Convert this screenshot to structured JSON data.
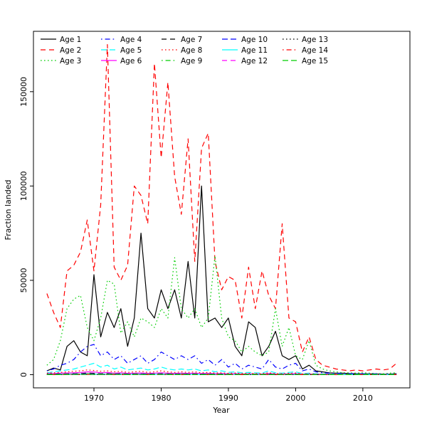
{
  "figure": {
    "background": "#ffffff"
  },
  "chart_data": {
    "type": "line",
    "title": "",
    "xlabel": "Year",
    "ylabel": "Fraction landed",
    "xlim": [
      1961,
      2017
    ],
    "ylim": [
      -7000,
      182000
    ],
    "x_ticks": [
      1970,
      1980,
      1990,
      2000,
      2010
    ],
    "y_ticks": [
      0,
      50000,
      100000,
      150000
    ],
    "grid": false,
    "legend_position": "top-left",
    "legend_columns": 5,
    "legend_rows": 3,
    "x": [
      1963,
      1964,
      1965,
      1966,
      1967,
      1968,
      1969,
      1970,
      1971,
      1972,
      1973,
      1974,
      1975,
      1976,
      1977,
      1978,
      1979,
      1980,
      1981,
      1982,
      1983,
      1984,
      1985,
      1986,
      1987,
      1988,
      1989,
      1990,
      1991,
      1992,
      1993,
      1994,
      1995,
      1996,
      1997,
      1998,
      1999,
      2000,
      2001,
      2002,
      2003,
      2004,
      2005,
      2006,
      2007,
      2008,
      2009,
      2010,
      2011,
      2012,
      2013,
      2014,
      2015
    ],
    "series": [
      {
        "name": "Age 1",
        "color": "#000000",
        "dash": "solid",
        "values": [
          2000,
          3500,
          2500,
          15000,
          18000,
          12000,
          10000,
          53000,
          20000,
          33000,
          25000,
          35000,
          15000,
          30000,
          75000,
          35000,
          30000,
          45000,
          35000,
          45000,
          30000,
          60000,
          30000,
          100000,
          28000,
          30000,
          25000,
          30000,
          15000,
          10000,
          28000,
          25000,
          10000,
          15000,
          23000,
          10000,
          8000,
          10000,
          3000,
          5000,
          2000,
          1500,
          1000,
          800,
          800,
          600,
          500,
          500,
          400,
          400,
          300,
          300,
          500
        ]
      },
      {
        "name": "Age 2",
        "color": "#FF0000",
        "dash": "dashed",
        "values": [
          43000,
          33000,
          25000,
          55000,
          58000,
          65000,
          82000,
          55000,
          90000,
          175000,
          57000,
          50000,
          58000,
          100000,
          95000,
          80000,
          165000,
          115000,
          155000,
          105000,
          85000,
          125000,
          60000,
          120000,
          128000,
          60000,
          45000,
          52000,
          50000,
          30000,
          57000,
          35000,
          55000,
          42000,
          35000,
          80000,
          30000,
          28000,
          12000,
          20000,
          8000,
          5000,
          4000,
          3000,
          2500,
          2000,
          2500,
          2000,
          2500,
          3000,
          2500,
          3000,
          6000
        ]
      },
      {
        "name": "Age 3",
        "color": "#00CD00",
        "dash": "dotted",
        "values": [
          5000,
          8000,
          18000,
          35000,
          40000,
          42000,
          25000,
          18000,
          30000,
          50000,
          48000,
          22000,
          28000,
          20000,
          30000,
          28000,
          25000,
          35000,
          30000,
          62000,
          35000,
          30000,
          35000,
          25000,
          30000,
          63000,
          30000,
          20000,
          18000,
          12000,
          15000,
          12000,
          10000,
          12000,
          35000,
          15000,
          25000,
          10000,
          8000,
          18000,
          5000,
          3000,
          2000,
          1500,
          1000,
          1000,
          800,
          1000,
          800,
          600,
          500,
          800,
          1000
        ]
      },
      {
        "name": "Age 4",
        "color": "#0000FF",
        "dash": "dotdash",
        "values": [
          2000,
          3000,
          5000,
          6000,
          8000,
          12000,
          15000,
          16000,
          10000,
          12000,
          8000,
          10000,
          6000,
          8000,
          10000,
          6000,
          8000,
          12000,
          10000,
          8000,
          10000,
          8000,
          10000,
          6000,
          8000,
          5000,
          8000,
          4000,
          6000,
          3000,
          5000,
          4000,
          3000,
          8000,
          4000,
          3000,
          5000,
          6000,
          2000,
          3000,
          1500,
          1000,
          800,
          700,
          600,
          600,
          500,
          500,
          400,
          400,
          300,
          300,
          400
        ]
      },
      {
        "name": "Age 5",
        "color": "#00FFFF",
        "dash": "longdash",
        "values": [
          1000,
          1500,
          2000,
          2500,
          3000,
          4000,
          5000,
          6000,
          4000,
          5000,
          3000,
          4000,
          2500,
          3000,
          3500,
          2500,
          3000,
          4000,
          3000,
          2500,
          3000,
          2500,
          3000,
          2000,
          2500,
          1500,
          2000,
          1200,
          1500,
          1000,
          1200,
          1000,
          800,
          2000,
          1000,
          800,
          1200,
          1500,
          600,
          800,
          500,
          400,
          300,
          300,
          250,
          250,
          200,
          200,
          200,
          150,
          150,
          150,
          200
        ]
      },
      {
        "name": "Age 6",
        "color": "#FF00FF",
        "dash": "solid",
        "values": [
          500,
          600,
          800,
          900,
          1000,
          1200,
          1500,
          1400,
          1000,
          1200,
          800,
          1000,
          700,
          800,
          900,
          700,
          800,
          1000,
          800,
          700,
          800,
          700,
          800,
          600,
          700,
          500,
          600,
          400,
          500,
          350,
          400,
          350,
          300,
          600,
          350,
          300,
          400,
          500,
          250,
          300,
          200,
          180,
          150,
          140,
          130,
          120,
          110,
          110,
          100,
          100,
          90,
          90,
          100
        ]
      },
      {
        "name": "Age 7",
        "color": "#000000",
        "dash": "dashed",
        "values": [
          250,
          300,
          400,
          450,
          500,
          600,
          800,
          700,
          500,
          600,
          400,
          500,
          350,
          400,
          450,
          350,
          400,
          500,
          400,
          350,
          400,
          350,
          400,
          300,
          350,
          250,
          300,
          200,
          250,
          180,
          200,
          180,
          150,
          300,
          180,
          150,
          200,
          250,
          120,
          150,
          100,
          90,
          80,
          70,
          70,
          60,
          60,
          50,
          50,
          50,
          40,
          40,
          50
        ]
      },
      {
        "name": "Age 8",
        "color": "#FF0000",
        "dash": "dotted",
        "values": [
          800,
          1000,
          1200,
          1500,
          1800,
          2000,
          2500,
          2200,
          1800,
          2000,
          1500,
          1800,
          1200,
          1500,
          1800,
          1200,
          1500,
          2000,
          1500,
          1200,
          1500,
          1200,
          1500,
          1000,
          1200,
          900,
          1000,
          700,
          900,
          600,
          700,
          600,
          500,
          1000,
          600,
          500,
          700,
          900,
          400,
          500,
          300,
          250,
          200,
          200,
          180,
          160,
          150,
          150,
          140,
          130,
          120,
          120,
          150
        ]
      },
      {
        "name": "Age 9",
        "color": "#00CD00",
        "dash": "dotdash",
        "values": [
          200,
          250,
          300,
          350,
          400,
          450,
          500,
          480,
          400,
          450,
          350,
          400,
          300,
          350,
          400,
          300,
          350,
          400,
          350,
          300,
          350,
          300,
          350,
          250,
          300,
          200,
          250,
          180,
          200,
          150,
          180,
          150,
          130,
          250,
          150,
          130,
          180,
          200,
          100,
          130,
          80,
          70,
          60,
          60,
          50,
          50,
          45,
          45,
          40,
          40,
          35,
          35,
          40
        ]
      },
      {
        "name": "Age 10",
        "color": "#0000FF",
        "dash": "longdash",
        "values": [
          150,
          180,
          220,
          260,
          300,
          340,
          380,
          360,
          300,
          340,
          260,
          300,
          220,
          260,
          300,
          220,
          260,
          300,
          260,
          220,
          260,
          220,
          260,
          190,
          220,
          150,
          190,
          130,
          150,
          110,
          130,
          110,
          100,
          190,
          110,
          100,
          130,
          150,
          80,
          100,
          60,
          55,
          50,
          45,
          40,
          40,
          35,
          35,
          30,
          30,
          28,
          28,
          30
        ]
      },
      {
        "name": "Age 11",
        "color": "#00FFFF",
        "dash": "solid",
        "values": [
          100,
          120,
          150,
          170,
          200,
          230,
          260,
          240,
          200,
          230,
          170,
          200,
          150,
          170,
          200,
          150,
          170,
          200,
          170,
          150,
          170,
          150,
          170,
          130,
          150,
          100,
          130,
          90,
          100,
          75,
          90,
          75,
          70,
          130,
          75,
          70,
          90,
          100,
          55,
          70,
          40,
          38,
          35,
          32,
          30,
          28,
          26,
          25,
          24,
          22,
          20,
          20,
          22
        ]
      },
      {
        "name": "Age 12",
        "color": "#FF00FF",
        "dash": "dashed",
        "values": [
          70,
          85,
          100,
          120,
          140,
          160,
          180,
          170,
          140,
          160,
          120,
          140,
          100,
          120,
          140,
          100,
          120,
          140,
          120,
          100,
          120,
          100,
          120,
          90,
          100,
          70,
          90,
          60,
          70,
          50,
          60,
          50,
          48,
          90,
          50,
          48,
          60,
          70,
          38,
          48,
          28,
          26,
          24,
          22,
          20,
          19,
          18,
          17,
          16,
          15,
          14,
          14,
          15
        ]
      },
      {
        "name": "Age 13",
        "color": "#000000",
        "dash": "dotted",
        "values": [
          50,
          60,
          70,
          85,
          100,
          115,
          130,
          120,
          100,
          115,
          85,
          100,
          70,
          85,
          100,
          70,
          85,
          100,
          85,
          70,
          85,
          70,
          85,
          65,
          70,
          50,
          65,
          42,
          50,
          36,
          42,
          36,
          34,
          65,
          36,
          34,
          42,
          50,
          27,
          34,
          20,
          19,
          17,
          16,
          14,
          13,
          13,
          12,
          11,
          11,
          10,
          10,
          11
        ]
      },
      {
        "name": "Age 14",
        "color": "#FF0000",
        "dash": "dotdash",
        "values": [
          35,
          42,
          50,
          60,
          70,
          80,
          90,
          85,
          70,
          80,
          60,
          70,
          50,
          60,
          70,
          50,
          60,
          70,
          60,
          50,
          60,
          50,
          60,
          45,
          50,
          35,
          45,
          30,
          35,
          25,
          30,
          25,
          24,
          45,
          25,
          24,
          30,
          35,
          19,
          24,
          14,
          13,
          12,
          11,
          10,
          9,
          9,
          8,
          8,
          7,
          7,
          7,
          8
        ]
      },
      {
        "name": "Age 15",
        "color": "#00CD00",
        "dash": "longdash",
        "values": [
          25,
          30,
          35,
          42,
          50,
          56,
          63,
          60,
          50,
          56,
          42,
          50,
          35,
          42,
          50,
          35,
          42,
          50,
          42,
          35,
          42,
          35,
          42,
          32,
          35,
          25,
          32,
          21,
          25,
          18,
          21,
          18,
          17,
          32,
          18,
          17,
          21,
          25,
          13,
          17,
          10,
          9,
          8,
          8,
          7,
          6,
          6,
          6,
          5,
          5,
          5,
          5,
          6
        ]
      }
    ]
  }
}
